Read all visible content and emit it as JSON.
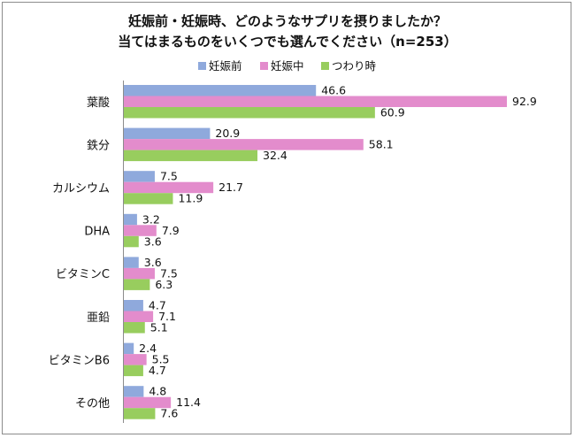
{
  "chart_data": {
    "type": "bar",
    "orientation": "horizontal",
    "title_line1": "妊娠前・妊娠時、どのようなサプリを摂りましたか？",
    "title_line2": "当てはまるものをいくつでも選んでください（n=253）",
    "categories": [
      "葉酸",
      "鉄分",
      "カルシウム",
      "DHA",
      "ビタミンC",
      "亜鉛",
      "ビタミンB6",
      "その他"
    ],
    "series": [
      {
        "name": "妊娠前",
        "color": "#8fa9dc",
        "values": [
          46.6,
          20.9,
          7.5,
          3.2,
          3.6,
          4.7,
          2.4,
          4.8
        ]
      },
      {
        "name": "妊娠中",
        "color": "#e38ccc",
        "values": [
          92.9,
          58.1,
          21.7,
          7.9,
          7.5,
          7.1,
          5.5,
          11.4
        ]
      },
      {
        "name": "つわり時",
        "color": "#98cd5e",
        "values": [
          60.9,
          32.4,
          11.9,
          3.6,
          6.3,
          5.1,
          4.7,
          7.6
        ]
      }
    ],
    "value_labels": [
      [
        "46.6",
        "20.9",
        "7.5",
        "3.2",
        "3.6",
        "4.7",
        "2.4",
        "4.8"
      ],
      [
        "92.9",
        "58.1",
        "21.7",
        "7.9",
        "7.5",
        "7.1",
        "5.5",
        "11.4"
      ],
      [
        "60.9",
        "32.4",
        "11.9",
        "3.6",
        "6.3",
        "5.1",
        "4.7",
        "7.6"
      ]
    ],
    "xlim": [
      0,
      100
    ],
    "legend_position": "top"
  }
}
